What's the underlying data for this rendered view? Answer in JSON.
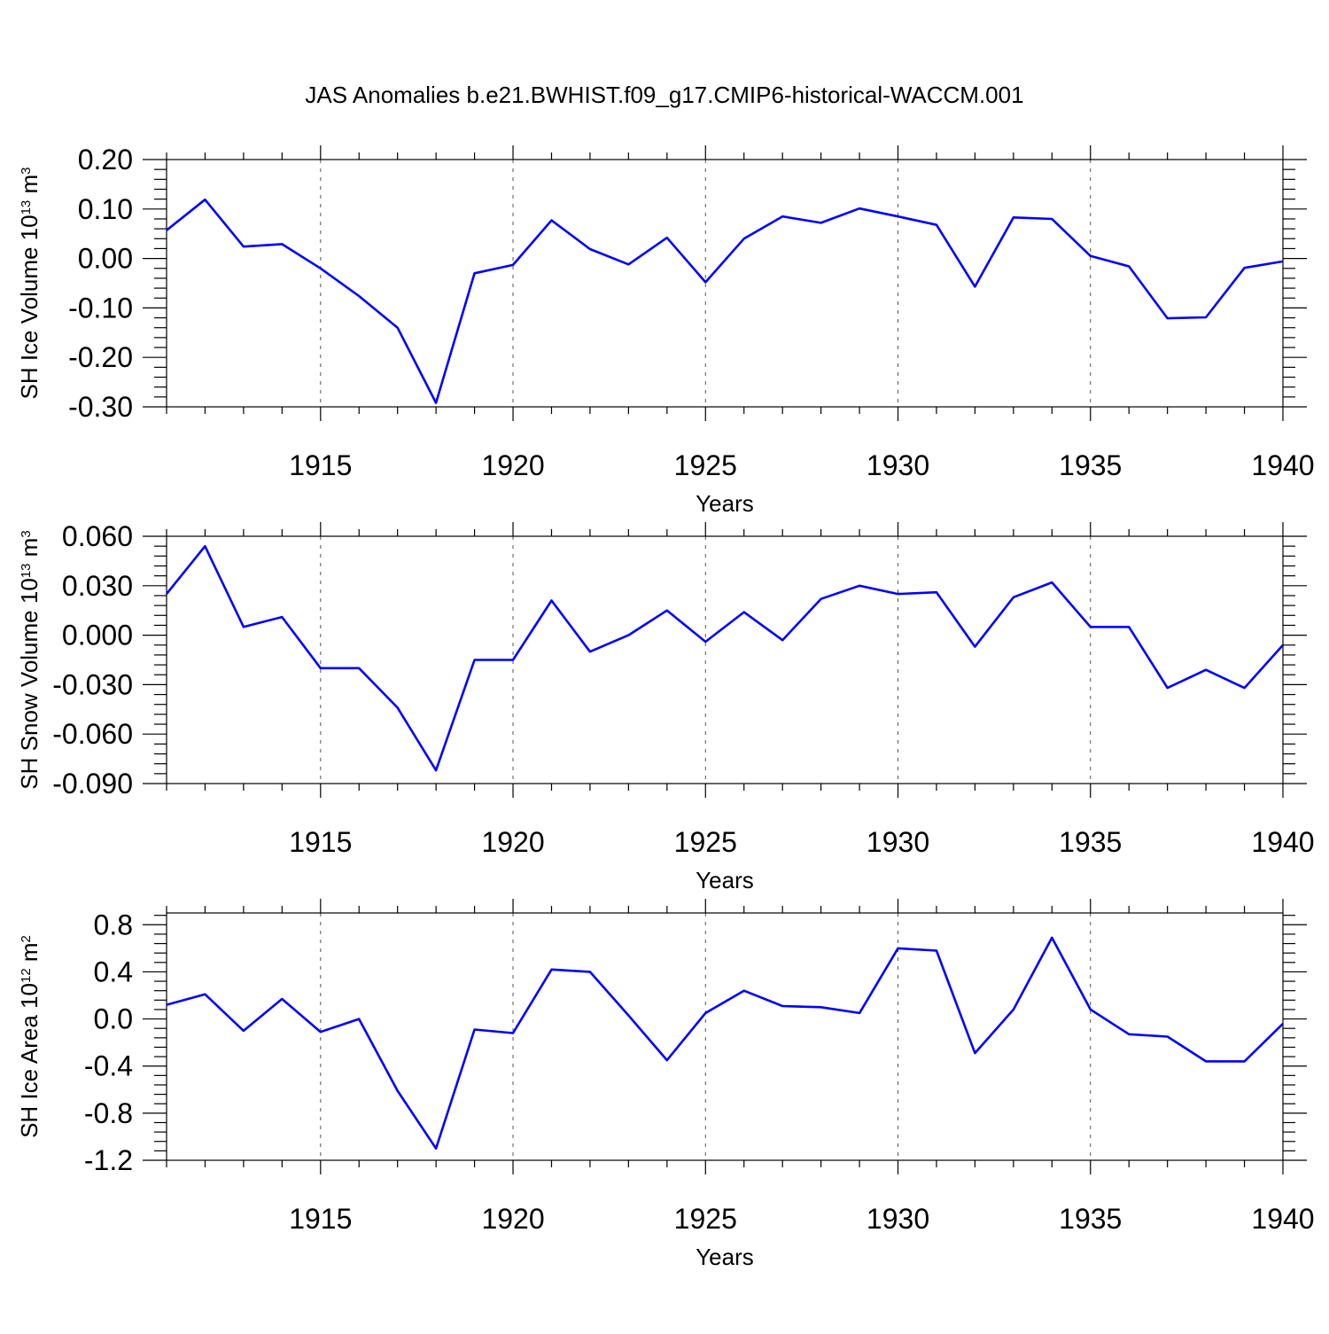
{
  "title": "JAS Anomalies b.e21.BWHIST.f09_g17.CMIP6-historical-WACCM.001",
  "colors": {
    "line": "#0000ff",
    "axes": "#000000",
    "grid": "#555555"
  },
  "chart_data": [
    {
      "type": "line",
      "ylabel": "SH Ice Volume 10",
      "ylabel_exp": "13",
      "ylabel_unit": " m",
      "ylabel_unit_exp": "3",
      "xlabel": "Years",
      "xlim": [
        1911,
        1940
      ],
      "ylim": [
        -0.3,
        0.2
      ],
      "yticks": [
        0.2,
        0.1,
        0.0,
        -0.1,
        -0.2,
        -0.3
      ],
      "ytick_labels": [
        "0.20",
        "0.10",
        "0.00",
        "-0.10",
        "-0.20",
        "-0.30"
      ],
      "ytick_decimals": 2,
      "xticks": [
        1915,
        1920,
        1925,
        1930,
        1935,
        1940
      ],
      "xtick_labels": [
        "1915",
        "1920",
        "1925",
        "1930",
        "1935",
        "1940"
      ],
      "grid": "vertical dashed at labeled years",
      "x": [
        1911,
        1912,
        1913,
        1914,
        1915,
        1916,
        1917,
        1918,
        1919,
        1920,
        1921,
        1922,
        1923,
        1924,
        1925,
        1926,
        1927,
        1928,
        1929,
        1930,
        1931,
        1932,
        1933,
        1934,
        1935,
        1936,
        1937,
        1938,
        1939,
        1940
      ],
      "y": [
        0.057,
        0.119,
        0.024,
        0.029,
        -0.02,
        -0.076,
        -0.14,
        -0.292,
        -0.03,
        -0.013,
        0.077,
        0.019,
        -0.012,
        0.042,
        -0.048,
        0.04,
        0.085,
        0.072,
        0.101,
        0.085,
        0.068,
        -0.057,
        0.083,
        0.08,
        0.005,
        -0.016,
        -0.121,
        -0.119,
        -0.019,
        -0.006
      ]
    },
    {
      "type": "line",
      "ylabel": "SH Snow Volume 10",
      "ylabel_exp": "13",
      "ylabel_unit": " m",
      "ylabel_unit_exp": "3",
      "xlabel": "Years",
      "xlim": [
        1911,
        1940
      ],
      "ylim": [
        -0.09,
        0.06
      ],
      "yticks": [
        0.06,
        0.03,
        0.0,
        -0.03,
        -0.06,
        -0.09
      ],
      "ytick_labels": [
        "0.060",
        "0.030",
        "0.000",
        "-0.030",
        "-0.060",
        "-0.090"
      ],
      "ytick_decimals": 3,
      "xticks": [
        1915,
        1920,
        1925,
        1930,
        1935,
        1940
      ],
      "xtick_labels": [
        "1915",
        "1920",
        "1925",
        "1930",
        "1935",
        "1940"
      ],
      "grid": "vertical dashed at labeled years",
      "x": [
        1911,
        1912,
        1913,
        1914,
        1915,
        1916,
        1917,
        1918,
        1919,
        1920,
        1921,
        1922,
        1923,
        1924,
        1925,
        1926,
        1927,
        1928,
        1929,
        1930,
        1931,
        1932,
        1933,
        1934,
        1935,
        1936,
        1937,
        1938,
        1939,
        1940
      ],
      "y": [
        0.025,
        0.054,
        0.005,
        0.011,
        -0.02,
        -0.02,
        -0.044,
        -0.082,
        -0.015,
        -0.015,
        0.021,
        -0.01,
        0.0,
        0.015,
        -0.004,
        0.014,
        -0.003,
        0.022,
        0.03,
        0.025,
        0.026,
        -0.007,
        0.023,
        0.032,
        0.005,
        0.005,
        -0.032,
        -0.021,
        -0.032,
        -0.006
      ]
    },
    {
      "type": "line",
      "ylabel": "SH Ice Area 10",
      "ylabel_exp": "12",
      "ylabel_unit": " m",
      "ylabel_unit_exp": "2",
      "xlabel": "Years",
      "xlim": [
        1911,
        1940
      ],
      "ylim": [
        -1.2,
        0.9
      ],
      "yticks": [
        0.8,
        0.4,
        0.0,
        -0.4,
        -0.8,
        -1.2
      ],
      "ytick_labels": [
        "0.8",
        "0.4",
        "0.0",
        "-0.4",
        "-0.8",
        "-1.2"
      ],
      "ytick_decimals": 1,
      "xticks": [
        1915,
        1920,
        1925,
        1930,
        1935,
        1940
      ],
      "xtick_labels": [
        "1915",
        "1920",
        "1925",
        "1930",
        "1935",
        "1940"
      ],
      "grid": "vertical dashed at labeled years",
      "x": [
        1911,
        1912,
        1913,
        1914,
        1915,
        1916,
        1917,
        1918,
        1919,
        1920,
        1921,
        1922,
        1923,
        1924,
        1925,
        1926,
        1927,
        1928,
        1929,
        1930,
        1931,
        1932,
        1933,
        1934,
        1935,
        1936,
        1937,
        1938,
        1939,
        1940
      ],
      "y": [
        0.12,
        0.21,
        -0.1,
        0.17,
        -0.11,
        0.0,
        -0.61,
        -1.1,
        -0.09,
        -0.12,
        0.42,
        0.4,
        0.03,
        -0.35,
        0.05,
        0.24,
        0.11,
        0.1,
        0.05,
        0.6,
        0.58,
        -0.29,
        0.08,
        0.69,
        0.08,
        -0.13,
        -0.15,
        -0.36,
        -0.36,
        -0.04
      ]
    }
  ]
}
